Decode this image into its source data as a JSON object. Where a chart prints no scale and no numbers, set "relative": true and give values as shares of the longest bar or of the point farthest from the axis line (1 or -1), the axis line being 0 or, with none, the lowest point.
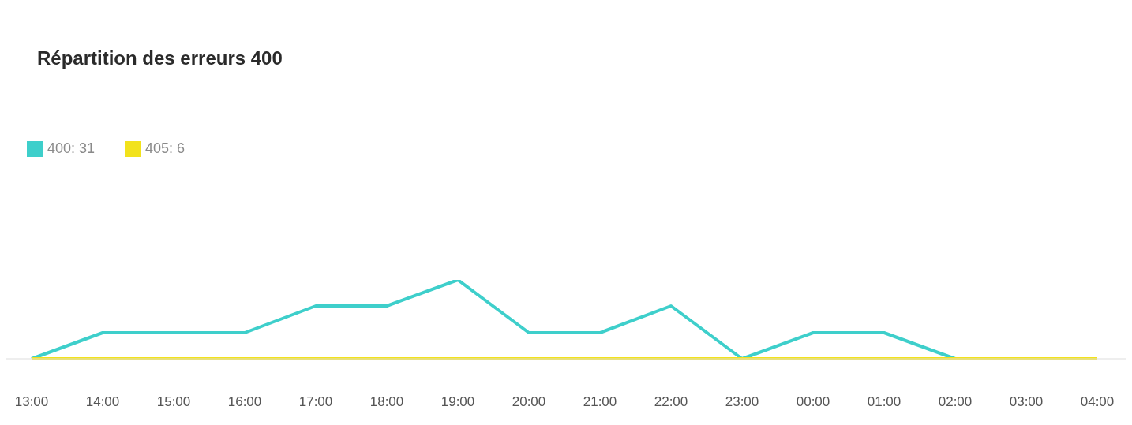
{
  "chart_data": {
    "type": "line",
    "title": "Répartition des erreurs 400",
    "relative": true,
    "categories": [
      "13:00",
      "14:00",
      "15:00",
      "16:00",
      "17:00",
      "18:00",
      "19:00",
      "20:00",
      "21:00",
      "22:00",
      "23:00",
      "00:00",
      "01:00",
      "02:00",
      "03:00",
      "04:00"
    ],
    "series": [
      {
        "name": "400: 31",
        "color": "#3ecfcb",
        "values": [
          0,
          0.33,
          0.33,
          0.33,
          0.67,
          0.67,
          1,
          0.33,
          0.33,
          0.67,
          0,
          0.33,
          0.33,
          0,
          0,
          0
        ]
      },
      {
        "name": "405: 6",
        "color": "#f2e21c",
        "values": [
          0,
          0,
          0,
          0,
          0,
          0,
          0,
          0,
          0,
          0,
          0,
          0,
          0,
          0,
          0,
          0
        ]
      }
    ],
    "legend": "top left",
    "grid": false,
    "marker": "none",
    "line_style": "solid"
  }
}
